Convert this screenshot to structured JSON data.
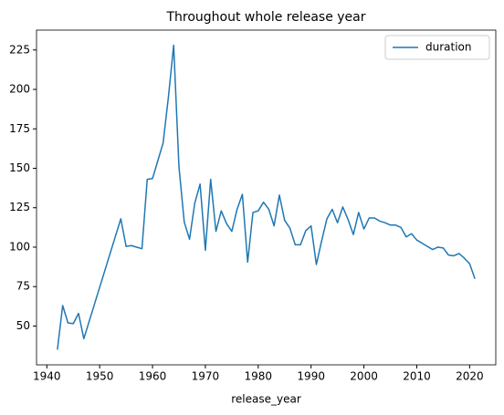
{
  "chart_data": {
    "type": "line",
    "title": "Throughout whole release year",
    "xlabel": "release_year",
    "x": [
      1942,
      1943,
      1944,
      1945,
      1946,
      1947,
      1954,
      1955,
      1956,
      1957,
      1958,
      1959,
      1960,
      1962,
      1963,
      1964,
      1965,
      1966,
      1967,
      1968,
      1969,
      1970,
      1971,
      1972,
      1973,
      1974,
      1975,
      1976,
      1977,
      1978,
      1979,
      1980,
      1981,
      1982,
      1983,
      1984,
      1985,
      1986,
      1987,
      1988,
      1989,
      1990,
      1991,
      1992,
      1993,
      1994,
      1995,
      1996,
      1997,
      1998,
      1999,
      2000,
      2001,
      2002,
      2003,
      2004,
      2005,
      2006,
      2007,
      2008,
      2009,
      2010,
      2011,
      2012,
      2013,
      2014,
      2015,
      2016,
      2017,
      2018,
      2019,
      2020,
      2021
    ],
    "series": [
      {
        "name": "duration",
        "color": "#1f77b4",
        "values": [
          35,
          63,
          52,
          51.5,
          58,
          42,
          118,
          100.5,
          101,
          100,
          99,
          143,
          143.5,
          166,
          195,
          228,
          151,
          116,
          105,
          128,
          140,
          98,
          143,
          110,
          123,
          115,
          110,
          124,
          133.5,
          90.5,
          122,
          123,
          128.5,
          124,
          113.5,
          133,
          117,
          112,
          101.5,
          101.5,
          110.5,
          113.5,
          89,
          104,
          118,
          124,
          115.5,
          125.5,
          117.5,
          108,
          122,
          111.5,
          118.5,
          118.5,
          116.5,
          115.5,
          114,
          114,
          112.5,
          106.5,
          108.5,
          104.5,
          102.5,
          100.5,
          98.5,
          100,
          99.5,
          95,
          94.5,
          96,
          93,
          89.5,
          80
        ]
      }
    ],
    "xlim": [
      1938.05,
      2024.95
    ],
    "ylim": [
      25.4,
      237.6
    ],
    "xticks": [
      1940,
      1950,
      1960,
      1970,
      1980,
      1990,
      2000,
      2010,
      2020
    ],
    "yticks": [
      50,
      75,
      100,
      125,
      150,
      175,
      200,
      225
    ],
    "legend": "upper right",
    "grid": false
  }
}
